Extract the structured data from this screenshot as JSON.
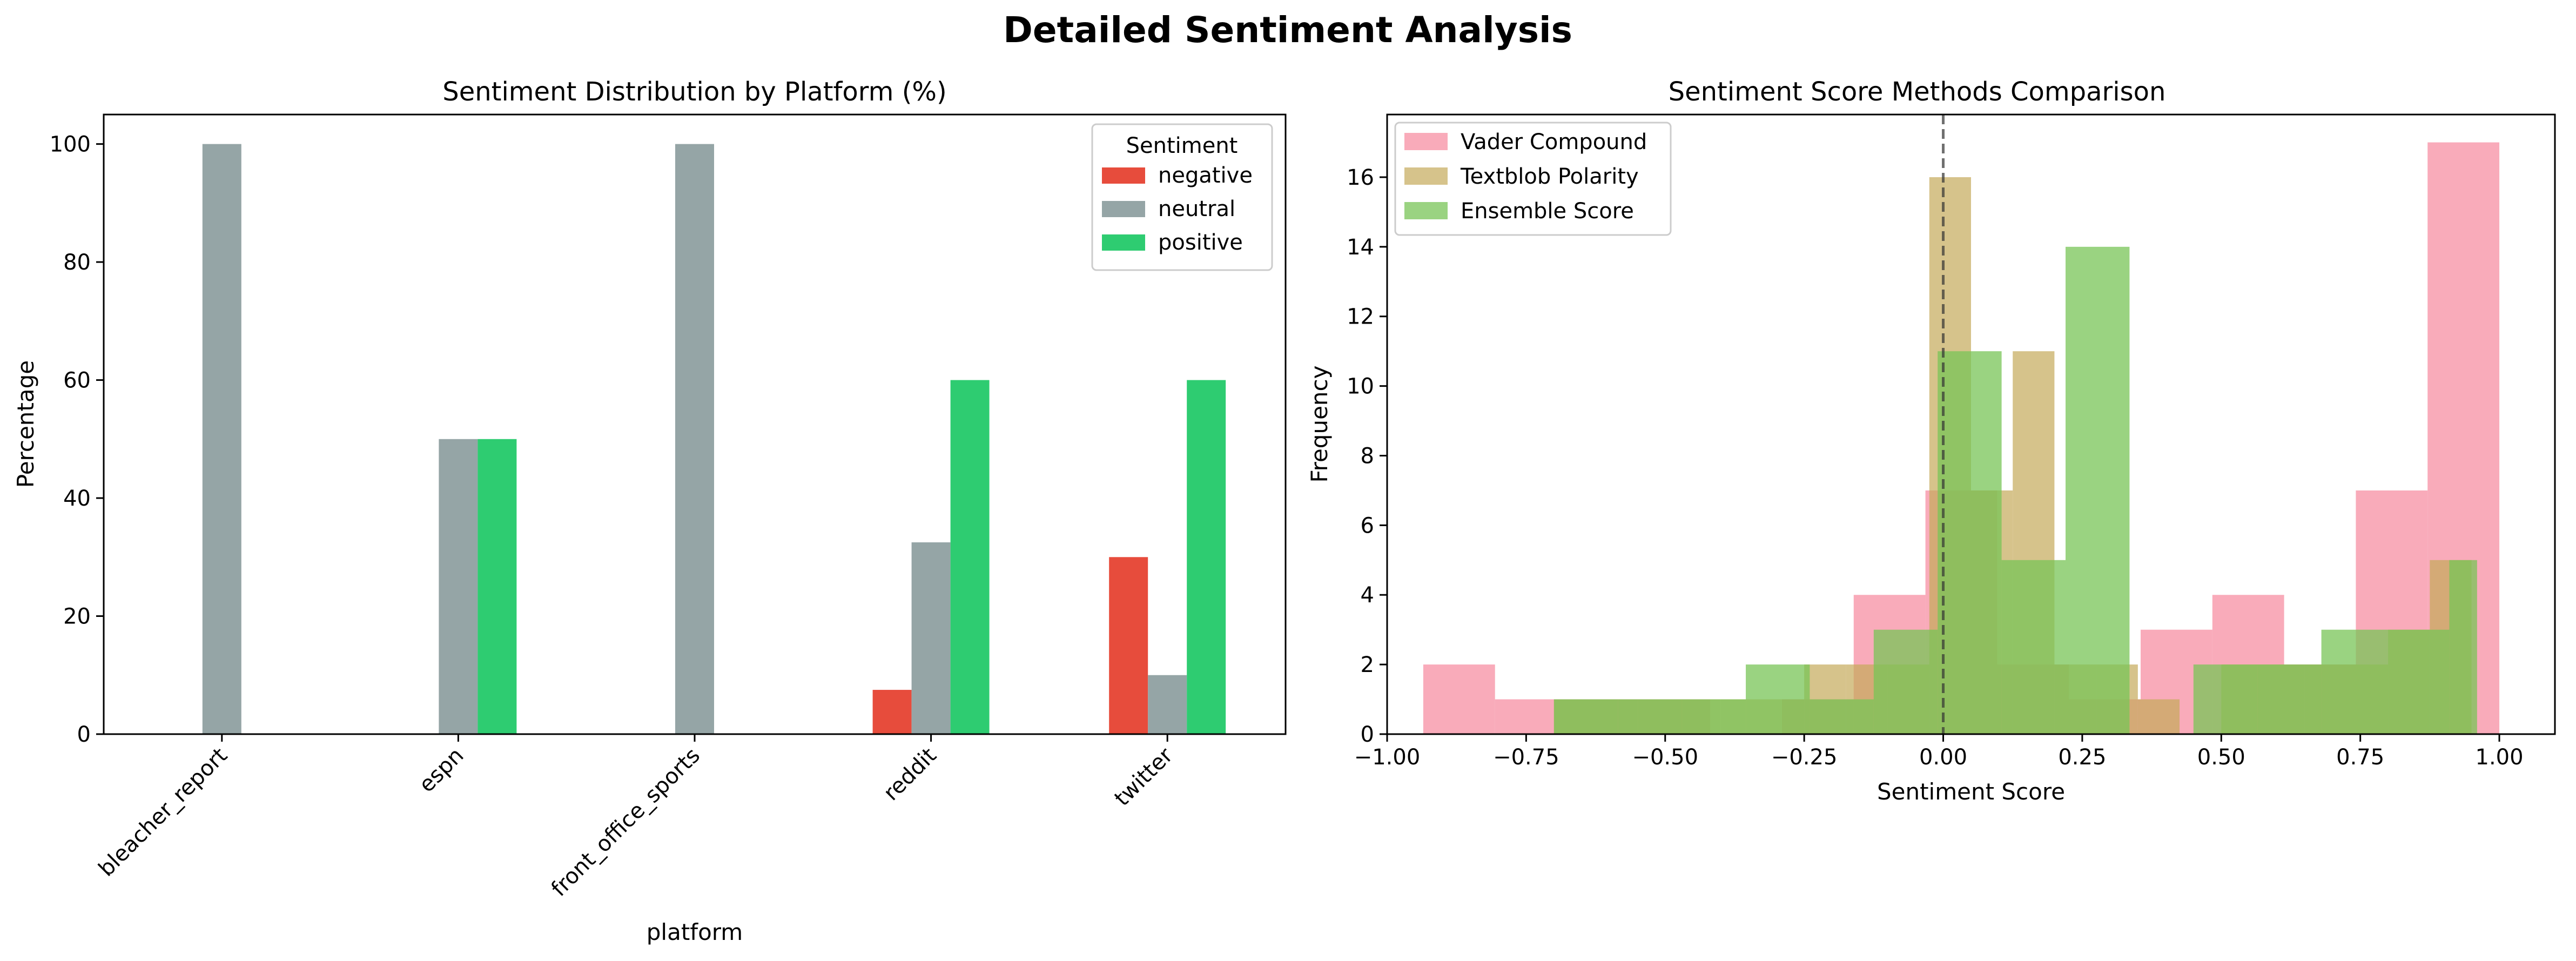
{
  "figure": {
    "title": "Detailed Sentiment Analysis"
  },
  "chart_data": [
    {
      "type": "bar",
      "title": "Sentiment Distribution by Platform (%)",
      "xlabel": "platform",
      "ylabel": "Percentage",
      "categories": [
        "bleacher_report",
        "espn",
        "front_office_sports",
        "reddit",
        "twitter"
      ],
      "series": [
        {
          "name": "negative",
          "color": "#e74c3c",
          "values": [
            0,
            0,
            0,
            7.5,
            30
          ]
        },
        {
          "name": "neutral",
          "color": "#95a5a6",
          "values": [
            100,
            50,
            100,
            32.5,
            10
          ]
        },
        {
          "name": "positive",
          "color": "#2ecc71",
          "values": [
            0,
            50,
            0,
            60,
            60
          ]
        }
      ],
      "ylim": [
        0,
        105
      ],
      "yticks": [
        0,
        20,
        40,
        60,
        80,
        100
      ],
      "legend": {
        "title": "Sentiment",
        "position": "upper right"
      },
      "grid": false
    },
    {
      "type": "histogram",
      "title": "Sentiment Score Methods Comparison",
      "xlabel": "Sentiment Score",
      "ylabel": "Frequency",
      "xlim": [
        -1.0,
        1.1
      ],
      "ylim": [
        0,
        17.8
      ],
      "xticks": [
        -1.0,
        -0.75,
        -0.5,
        -0.25,
        0.0,
        0.25,
        0.5,
        0.75,
        1.0
      ],
      "xtick_labels": [
        "−1.00",
        "−0.75",
        "−0.50",
        "−0.25",
        "0.00",
        "0.25",
        "0.50",
        "0.75",
        "1.00"
      ],
      "yticks": [
        0,
        2,
        4,
        6,
        8,
        10,
        12,
        14,
        16
      ],
      "reference_line": {
        "x": 0,
        "style": "dashed"
      },
      "legend": {
        "position": "upper left"
      },
      "grid": false,
      "series": [
        {
          "name": "Vader Compound",
          "color": "#f7879c",
          "opacity": 0.7,
          "bins": [
            [
              -0.935,
              -0.806,
              2
            ],
            [
              -0.806,
              -0.677,
              1
            ],
            [
              -0.677,
              -0.548,
              1
            ],
            [
              -0.548,
              -0.419,
              1
            ],
            [
              -0.419,
              -0.29,
              0
            ],
            [
              -0.29,
              -0.161,
              1
            ],
            [
              -0.161,
              -0.032,
              4
            ],
            [
              -0.032,
              0.097,
              7
            ],
            [
              0.097,
              0.226,
              2
            ],
            [
              0.226,
              0.355,
              1
            ],
            [
              0.355,
              0.484,
              3
            ],
            [
              0.484,
              0.613,
              4
            ],
            [
              0.613,
              0.742,
              2
            ],
            [
              0.742,
              0.871,
              7
            ],
            [
              0.871,
              1.0,
              17
            ]
          ]
        },
        {
          "name": "Textblob Polarity",
          "color": "#c4a95a",
          "opacity": 0.7,
          "bins": [
            [
              -0.7,
              -0.625,
              1
            ],
            [
              -0.625,
              -0.55,
              1
            ],
            [
              -0.55,
              -0.475,
              1
            ],
            [
              -0.475,
              -0.4,
              1
            ],
            [
              -0.4,
              -0.325,
              1
            ],
            [
              -0.325,
              -0.25,
              1
            ],
            [
              -0.25,
              -0.175,
              2
            ],
            [
              -0.175,
              -0.1,
              2
            ],
            [
              -0.1,
              -0.025,
              2
            ],
            [
              -0.025,
              0.05,
              16
            ],
            [
              0.05,
              0.125,
              7
            ],
            [
              0.125,
              0.2,
              11
            ],
            [
              0.2,
              0.275,
              2
            ],
            [
              0.275,
              0.35,
              2
            ],
            [
              0.35,
              0.425,
              1
            ],
            [
              0.425,
              0.5,
              0
            ],
            [
              0.5,
              0.575,
              2
            ],
            [
              0.575,
              0.65,
              2
            ],
            [
              0.65,
              0.725,
              2
            ],
            [
              0.725,
              0.8,
              2
            ],
            [
              0.8,
              0.875,
              3
            ],
            [
              0.875,
              0.95,
              5
            ]
          ]
        },
        {
          "name": "Ensemble Score",
          "color": "#78c457",
          "opacity": 0.75,
          "bins": [
            [
              -0.7,
              -0.585,
              1
            ],
            [
              -0.585,
              -0.47,
              1
            ],
            [
              -0.47,
              -0.355,
              1
            ],
            [
              -0.355,
              -0.24,
              2
            ],
            [
              -0.24,
              -0.125,
              1
            ],
            [
              -0.125,
              -0.01,
              3
            ],
            [
              -0.01,
              0.105,
              11
            ],
            [
              0.105,
              0.22,
              5
            ],
            [
              0.22,
              0.335,
              14
            ],
            [
              0.335,
              0.45,
              0
            ],
            [
              0.45,
              0.565,
              2
            ],
            [
              0.565,
              0.68,
              2
            ],
            [
              0.68,
              0.795,
              3
            ],
            [
              0.795,
              0.91,
              3
            ],
            [
              0.91,
              0.96,
              5
            ]
          ]
        }
      ]
    }
  ]
}
